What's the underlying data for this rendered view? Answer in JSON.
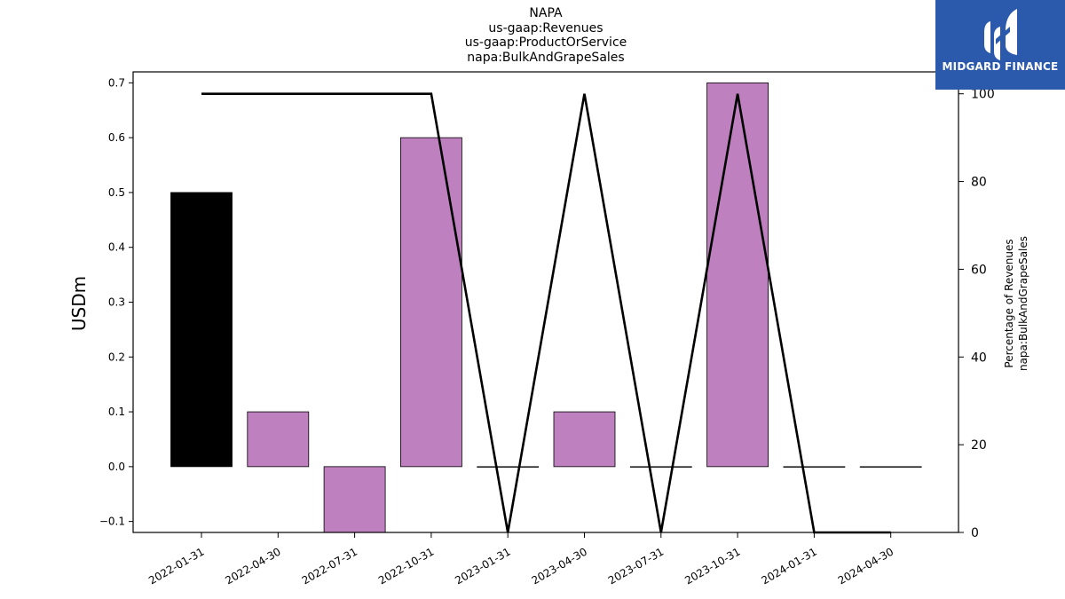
{
  "title_lines": [
    "NAPA",
    "us-gaap:Revenues",
    "us-gaap:ProductOrService",
    "napa:BulkAndGrapeSales"
  ],
  "logo": {
    "text": "MIDGARD FINANCE",
    "background": "#2b5aad"
  },
  "chart_data": {
    "type": "bar",
    "categories": [
      "2022-01-31",
      "2022-04-30",
      "2022-07-31",
      "2022-10-31",
      "2023-01-31",
      "2023-04-30",
      "2023-07-31",
      "2023-10-31",
      "2024-01-31",
      "2024-04-30"
    ],
    "series": [
      {
        "axis": "left",
        "type": "bar",
        "values": [
          0.5,
          0.1,
          -0.12,
          0.6,
          0.0,
          0.1,
          0.0,
          0.7,
          0.0,
          0.0
        ],
        "colors": [
          "#000000",
          "#bf80bf",
          "#bf80bf",
          "#bf80bf",
          "#bf80bf",
          "#bf80bf",
          "#bf80bf",
          "#bf80bf",
          "#bf80bf",
          "#bf80bf"
        ]
      },
      {
        "axis": "right",
        "type": "line",
        "values": [
          100,
          100,
          100,
          100,
          0,
          100,
          0,
          100,
          0,
          0
        ],
        "color": "#000000"
      }
    ],
    "ylabel": "USDm",
    "ylabel_right_lines": [
      "Percentage of Revenues",
      "napa:BulkAndGrapeSales"
    ],
    "ylim": [
      -0.12,
      0.72
    ],
    "ylim_right": [
      0,
      105
    ],
    "yticks": [
      -0.1,
      0.0,
      0.1,
      0.2,
      0.3,
      0.4,
      0.5,
      0.6,
      0.7
    ],
    "ytick_labels": [
      "−0.1",
      "0.0",
      "0.1",
      "0.2",
      "0.3",
      "0.4",
      "0.5",
      "0.6",
      "0.7"
    ],
    "yticks_right": [
      0,
      20,
      40,
      60,
      80,
      100
    ],
    "ytick_labels_right": [
      "0",
      "20",
      "40",
      "60",
      "80",
      "100"
    ],
    "grid": false
  }
}
